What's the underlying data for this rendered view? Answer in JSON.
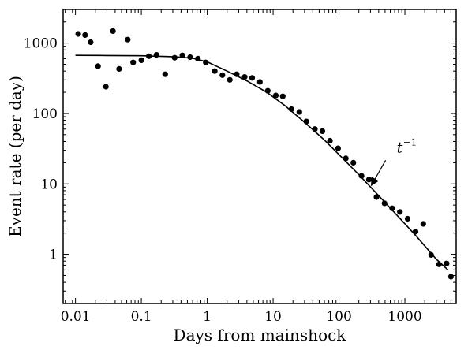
{
  "chart_data": {
    "type": "scatter",
    "title": "",
    "xlabel": "Days from mainshock",
    "ylabel": "Event rate (per day)",
    "xscale": "log",
    "yscale": "log",
    "xlim": [
      0.0065,
      6000
    ],
    "ylim": [
      0.2,
      3000
    ],
    "grid": false,
    "legend": "none",
    "x_ticks": [
      0.01,
      0.1,
      1,
      10,
      100,
      1000
    ],
    "x_tick_labels": [
      "0.01",
      "0.1",
      "1",
      "10",
      "100",
      "1000"
    ],
    "y_ticks": [
      1,
      10,
      100,
      1000
    ],
    "y_tick_labels": [
      "1",
      "10",
      "100",
      "1000"
    ],
    "series": [
      {
        "kind": "points",
        "color": "#000000",
        "points": [
          [
            0.011,
            1350
          ],
          [
            0.014,
            1300
          ],
          [
            0.017,
            1030
          ],
          [
            0.022,
            470
          ],
          [
            0.029,
            240
          ],
          [
            0.037,
            1480
          ],
          [
            0.046,
            430
          ],
          [
            0.062,
            1120
          ],
          [
            0.075,
            530
          ],
          [
            0.1,
            570
          ],
          [
            0.13,
            650
          ],
          [
            0.17,
            680
          ],
          [
            0.23,
            360
          ],
          [
            0.32,
            620
          ],
          [
            0.42,
            670
          ],
          [
            0.55,
            630
          ],
          [
            0.72,
            600
          ],
          [
            0.95,
            530
          ],
          [
            1.3,
            400
          ],
          [
            1.7,
            350
          ],
          [
            2.2,
            300
          ],
          [
            2.8,
            360
          ],
          [
            3.7,
            330
          ],
          [
            4.8,
            320
          ],
          [
            6.3,
            280
          ],
          [
            8.3,
            210
          ],
          [
            11,
            180
          ],
          [
            14,
            175
          ],
          [
            19,
            115
          ],
          [
            25,
            105
          ],
          [
            32,
            77
          ],
          [
            43,
            60
          ],
          [
            56,
            56
          ],
          [
            73,
            41
          ],
          [
            97,
            32
          ],
          [
            127,
            23
          ],
          [
            165,
            20
          ],
          [
            220,
            13
          ],
          [
            285,
            11.5
          ],
          [
            370,
            6.5
          ],
          [
            490,
            5.3
          ],
          [
            640,
            4.5
          ],
          [
            840,
            4
          ],
          [
            1100,
            3.2
          ],
          [
            1450,
            2.1
          ],
          [
            1900,
            2.7
          ],
          [
            2500,
            0.98
          ],
          [
            3300,
            0.72
          ],
          [
            4300,
            0.74
          ],
          [
            5000,
            0.48
          ]
        ]
      },
      {
        "kind": "line",
        "color": "#000000",
        "points": [
          [
            0.01,
            670
          ],
          [
            0.03,
            665
          ],
          [
            0.1,
            660
          ],
          [
            0.3,
            640
          ],
          [
            0.6,
            610
          ],
          [
            1,
            540
          ],
          [
            2,
            400
          ],
          [
            4,
            290
          ],
          [
            8,
            200
          ],
          [
            15,
            130
          ],
          [
            30,
            75
          ],
          [
            60,
            42
          ],
          [
            100,
            26
          ],
          [
            200,
            13.5
          ],
          [
            400,
            6.8
          ],
          [
            800,
            3.4
          ],
          [
            1500,
            1.8
          ],
          [
            3000,
            0.85
          ],
          [
            4500,
            0.6
          ]
        ]
      }
    ],
    "annotations": [
      {
        "text": "t",
        "superscript": "−1",
        "arrow_to": [
          310,
          9.5
        ],
        "text_at": [
          750,
          28
        ]
      }
    ]
  }
}
